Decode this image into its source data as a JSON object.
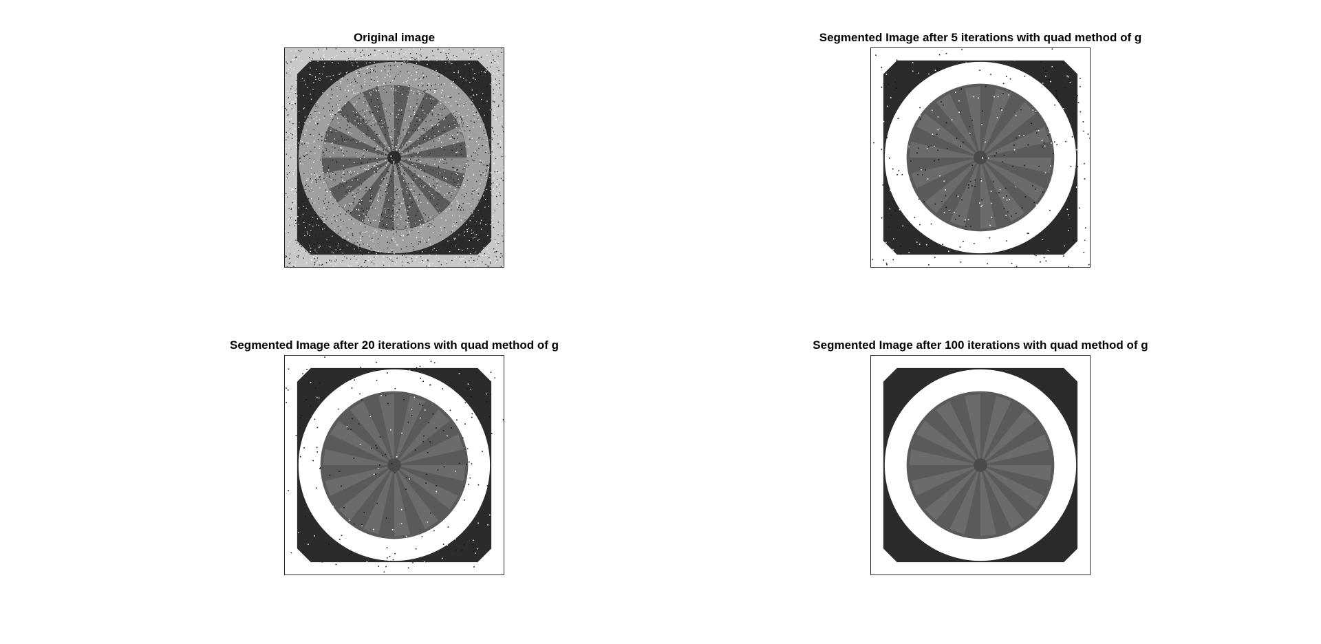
{
  "figure": {
    "panels": [
      {
        "title": "Original image",
        "variant": "original",
        "noise": 1.0
      },
      {
        "title": "Segmented Image after 5 iterations with quad method of g",
        "variant": "segmented",
        "noise": 0.55
      },
      {
        "title": "Segmented Image after 20 iterations with quad method of g",
        "variant": "segmented",
        "noise": 0.35
      },
      {
        "title": "Segmented Image after 100 iterations with quad method of g",
        "variant": "segmented",
        "noise": 0.0
      }
    ]
  },
  "colors": {
    "background": "#ffffff",
    "dark_region": "#2b2b2b",
    "ring": "#ffffff",
    "inner_disk": "#5a5a5a",
    "spoke": "#7a7a7a",
    "original_bg": "#c8c8c8",
    "original_ring": "#a0a0a0"
  }
}
